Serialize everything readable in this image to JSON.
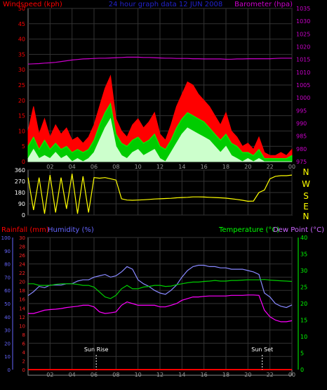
{
  "header": {
    "left": "Windspeed (kph)",
    "center": "24 hour graph data 12 JUN 2008",
    "right": "Barometer (hpa)"
  },
  "direction_labels": [
    "N",
    "W",
    "S",
    "E",
    "N"
  ],
  "bottom_labels": {
    "rainfall": "Rainfall (mm)",
    "humidity": "Humidity (%)",
    "temperature": "Temperature (°C)",
    "dewpoint": "Dew Point (°C)",
    "sunrise": "Sun Rise",
    "sunset": "Sun Set"
  },
  "colors": {
    "gust": "#ff0000",
    "average": "#00cc00",
    "lull": "#ccffcc",
    "barometer": "#cc00cc",
    "direction": "#ffff00",
    "humidity": "#8888ff",
    "temperature": "#00cc00",
    "dewpoint": "#ff00ff",
    "rain": "#ff0000",
    "left_axis": "#ff0000",
    "right_axis": "#cc00cc",
    "humidity_axis": "#6666ff",
    "rain_axis": "#ff2222",
    "temp_axis": "#00ff00"
  },
  "chart_data": [
    {
      "type": "area",
      "title": "24 hour graph data 12 JUN 2008",
      "xticks": [
        "02",
        "04",
        "06",
        "08",
        "10",
        "12",
        "14",
        "16",
        "18",
        "20",
        "22",
        "00"
      ],
      "ylim": [
        0,
        50
      ],
      "yticks": [
        0,
        5,
        10,
        15,
        20,
        25,
        30,
        35,
        40,
        45,
        50
      ],
      "ylabel": "Windspeed (kph)",
      "y2lim": [
        975,
        1035
      ],
      "y2ticks": [
        975,
        980,
        985,
        990,
        995,
        1000,
        1005,
        1010,
        1015,
        1020,
        1025,
        1030,
        1035
      ],
      "y2label": "Barometer (hpa)",
      "x_hours": [
        0,
        0.5,
        1,
        1.5,
        2,
        2.5,
        3,
        3.5,
        4,
        4.5,
        5,
        5.5,
        6,
        6.5,
        7,
        7.5,
        8,
        8.5,
        9,
        9.5,
        10,
        10.5,
        11,
        11.5,
        12,
        12.5,
        13,
        13.5,
        14,
        14.5,
        15,
        15.5,
        16,
        16.5,
        17,
        17.5,
        18,
        18.5,
        19,
        19.5,
        20,
        20.5,
        21,
        21.5,
        22,
        22.5,
        23,
        23.5,
        24
      ],
      "series": [
        {
          "name": "gust",
          "values": [
            10,
            18,
            9,
            14,
            8,
            12,
            9,
            11,
            7,
            8,
            6,
            8,
            12,
            18,
            24,
            28,
            14,
            10,
            8,
            12,
            14,
            11,
            13,
            16,
            9,
            7,
            12,
            18,
            22,
            26,
            25,
            22,
            20,
            18,
            15,
            12,
            16,
            10,
            8,
            5,
            6,
            4,
            8,
            3,
            2,
            2,
            3,
            2,
            4
          ]
        },
        {
          "name": "average",
          "values": [
            5,
            8,
            4,
            7,
            4,
            6,
            4,
            5,
            3,
            4,
            3,
            4,
            7,
            12,
            16,
            19,
            9,
            6,
            5,
            7,
            8,
            6,
            7,
            9,
            5,
            4,
            7,
            11,
            14,
            16,
            15,
            14,
            13,
            11,
            9,
            7,
            9,
            6,
            5,
            3,
            3,
            2,
            4,
            1,
            1,
            1,
            1,
            1,
            2
          ]
        },
        {
          "name": "lull",
          "values": [
            1,
            4,
            1,
            2,
            1,
            3,
            1,
            2,
            0,
            1,
            0,
            1,
            3,
            7,
            11,
            14,
            5,
            2,
            1,
            3,
            4,
            2,
            3,
            4,
            1,
            0,
            3,
            6,
            9,
            11,
            10,
            9,
            8,
            7,
            5,
            3,
            5,
            2,
            1,
            0,
            1,
            0,
            1,
            0,
            0,
            0,
            0,
            0,
            0
          ]
        },
        {
          "name": "barometer",
          "values": [
            1013.2,
            1013.3,
            1013.4,
            1013.6,
            1013.7,
            1013.9,
            1014.2,
            1014.5,
            1014.8,
            1015.0,
            1015.2,
            1015.3,
            1015.4,
            1015.5,
            1015.5,
            1015.6,
            1015.7,
            1015.8,
            1015.9,
            1015.9,
            1015.9,
            1015.8,
            1015.8,
            1015.7,
            1015.6,
            1015.5,
            1015.5,
            1015.4,
            1015.4,
            1015.4,
            1015.3,
            1015.3,
            1015.2,
            1015.2,
            1015.2,
            1015.2,
            1015.1,
            1015.1,
            1015.2,
            1015.2,
            1015.3,
            1015.3,
            1015.3,
            1015.3,
            1015.3,
            1015.4,
            1015.5,
            1015.5,
            1015.5
          ]
        }
      ]
    },
    {
      "type": "line",
      "title": "",
      "xticks": [
        "02",
        "04",
        "06",
        "08",
        "10",
        "12",
        "14",
        "16",
        "18",
        "20",
        "22",
        "00"
      ],
      "ylim": [
        0,
        360
      ],
      "yticks": [
        0,
        90,
        180,
        270,
        360
      ],
      "x_hours": [
        0,
        0.5,
        1,
        1.5,
        2,
        2.5,
        3,
        3.5,
        4,
        4.5,
        5,
        5.5,
        6,
        6.5,
        7,
        7.5,
        8,
        8.5,
        9,
        9.5,
        10,
        10.5,
        11,
        11.5,
        12,
        12.5,
        13,
        13.5,
        14,
        14.5,
        15,
        15.5,
        16,
        16.5,
        17,
        17.5,
        18,
        18.5,
        19,
        19.5,
        20,
        20.5,
        21,
        21.5,
        22,
        22.5,
        23,
        23.5,
        24
      ],
      "series": [
        {
          "name": "direction",
          "values": [
            300,
            40,
            300,
            10,
            320,
            20,
            300,
            50,
            330,
            10,
            310,
            20,
            300,
            295,
            300,
            290,
            280,
            130,
            120,
            118,
            120,
            122,
            125,
            128,
            130,
            132,
            134,
            138,
            140,
            142,
            145,
            145,
            144,
            142,
            140,
            138,
            135,
            130,
            125,
            118,
            110,
            112,
            180,
            200,
            290,
            310,
            315,
            315,
            320
          ]
        }
      ]
    },
    {
      "type": "line",
      "title": "",
      "xticks": [
        "02",
        "04",
        "06",
        "08",
        "10",
        "12",
        "14",
        "16",
        "18",
        "20",
        "22",
        "00"
      ],
      "ylim": [
        0,
        100
      ],
      "yticks": [
        0,
        10,
        20,
        30,
        40,
        50,
        60,
        70,
        80,
        90,
        100
      ],
      "ylabel": "Humidity (%)",
      "rain_ylim": [
        0,
        30
      ],
      "rain_yticks": [
        0,
        2,
        4,
        6,
        8,
        10,
        12,
        14,
        16,
        18,
        20,
        22,
        24,
        26,
        28,
        30
      ],
      "rainlabel": "Rainfall (mm)",
      "y2lim": [
        0,
        40
      ],
      "y2ticks": [
        0,
        5,
        10,
        15,
        20,
        25,
        30,
        35,
        40
      ],
      "y2label": "Temperature (°C)",
      "annotations": [
        "Sun Rise",
        "Sun Set"
      ],
      "x_hours": [
        0,
        0.5,
        1,
        1.5,
        2,
        2.5,
        3,
        3.5,
        4,
        4.5,
        5,
        5.5,
        6,
        6.5,
        7,
        7.5,
        8,
        8.5,
        9,
        9.5,
        10,
        10.5,
        11,
        11.5,
        12,
        12.5,
        13,
        13.5,
        14,
        14.5,
        15,
        15.5,
        16,
        16.5,
        17,
        17.5,
        18,
        18.5,
        19,
        19.5,
        20,
        20.5,
        21,
        21.5,
        22,
        22.5,
        23,
        23.5,
        24
      ],
      "series": [
        {
          "name": "humidity",
          "values": [
            56,
            59,
            63,
            62,
            64,
            64,
            64,
            65,
            65,
            67,
            68,
            68,
            70,
            71,
            72,
            70,
            71,
            74,
            78,
            76,
            68,
            65,
            63,
            60,
            58,
            57,
            60,
            64,
            70,
            75,
            78,
            79,
            79,
            78,
            78,
            77,
            77,
            76,
            76,
            76,
            75,
            74,
            72,
            58,
            55,
            50,
            48,
            47,
            49
          ]
        },
        {
          "name": "temperature",
          "units": "°C",
          "values": [
            26,
            26,
            25.5,
            25.5,
            25.5,
            25.8,
            26,
            26,
            26,
            25.8,
            25.5,
            25.5,
            25,
            23.5,
            22,
            21.5,
            22.5,
            24.5,
            25.5,
            24.5,
            24.5,
            25,
            25.2,
            25.5,
            25.5,
            25.2,
            25.3,
            25.7,
            26,
            26.3,
            26.5,
            26.5,
            26.7,
            26.8,
            27,
            26.8,
            26.8,
            27,
            27,
            27.1,
            27.2,
            27.2,
            27.2,
            27.3,
            27.1,
            27,
            26.9,
            26.8,
            26.7
          ]
        },
        {
          "name": "dewpoint",
          "units": "°C",
          "values": [
            17,
            17,
            17.5,
            18,
            18.2,
            18.3,
            18.5,
            18.8,
            19,
            19.2,
            19.5,
            19.5,
            19,
            17.5,
            17,
            17.2,
            17.5,
            19.5,
            20.5,
            20,
            19.5,
            19.5,
            19.5,
            19.5,
            19,
            19,
            19.5,
            20,
            21,
            21.5,
            22,
            22,
            22.2,
            22.3,
            22.3,
            22.3,
            22.3,
            22.5,
            22.5,
            22.5,
            22.6,
            22.6,
            22.5,
            18,
            16,
            15,
            14.5,
            14.5,
            14.8
          ]
        },
        {
          "name": "rain",
          "units": "mm",
          "values": [
            0,
            0,
            0,
            0,
            0,
            0,
            0,
            0,
            0,
            0,
            0,
            0,
            0,
            0,
            0,
            0,
            0,
            0,
            0,
            0,
            0,
            0,
            0,
            0,
            0,
            0,
            0,
            0,
            0,
            0,
            0,
            0,
            0,
            0,
            0,
            0,
            0,
            0,
            0,
            0,
            0,
            0,
            0,
            0,
            0,
            0,
            0,
            0,
            0
          ]
        }
      ],
      "markers": [
        {
          "label": "Sun Rise",
          "hour": 6.2
        },
        {
          "label": "Sun Set",
          "hour": 21.3
        }
      ]
    }
  ]
}
